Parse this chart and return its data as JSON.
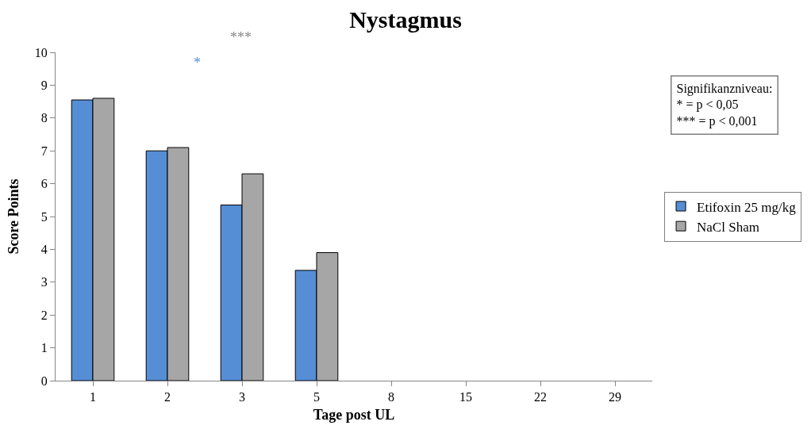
{
  "chart_data": {
    "type": "bar",
    "title": "Nystagmus",
    "xlabel": "Tage post UL",
    "ylabel": "Score Points",
    "categories": [
      "1",
      "2",
      "3",
      "5",
      "8",
      "15",
      "22",
      "29"
    ],
    "series": [
      {
        "name": "Etifoxin 25 mg/kg",
        "color": "#558ed5",
        "values": [
          8.55,
          7.0,
          5.35,
          3.36,
          null,
          null,
          null,
          null
        ]
      },
      {
        "name": "NaCl Sham",
        "color": "#a6a6a6",
        "values": [
          8.6,
          7.1,
          6.3,
          3.9,
          null,
          null,
          null,
          null
        ]
      }
    ],
    "ylim": [
      0,
      10
    ],
    "yticks": [
      0,
      1,
      2,
      3,
      4,
      5,
      6,
      7,
      8,
      9,
      10
    ],
    "legend": "right",
    "annotations": [
      "*",
      "***",
      "Signifikanzniveau:\n* = p < 0,05\n*** = p < 0,001"
    ]
  }
}
